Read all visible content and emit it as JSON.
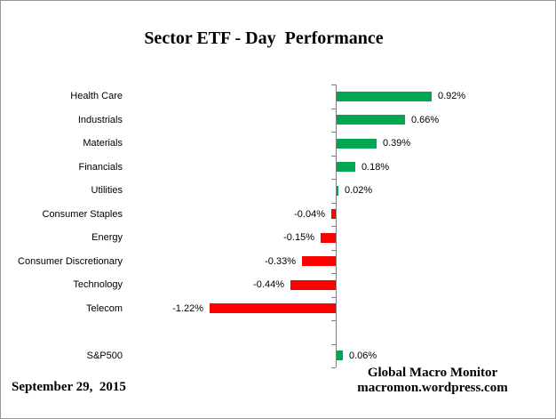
{
  "title": "Sector ETF - Day  Performance",
  "footer": {
    "date": "September 29,  2015",
    "brand": "Global Macro Monitor",
    "url": "macromon.wordpress.com"
  },
  "chart_data": {
    "type": "bar",
    "orientation": "horizontal",
    "title": "Sector ETF - Day  Performance",
    "categories": [
      "Health Care",
      "Industrials",
      "Materials",
      "Financials",
      "Utilities",
      "Consumer Staples",
      "Energy",
      "Consumer Discretionary",
      "Technology",
      "Telecom",
      "",
      "S&P500"
    ],
    "values": [
      0.92,
      0.66,
      0.39,
      0.18,
      0.02,
      -0.04,
      -0.15,
      -0.33,
      -0.44,
      -1.22,
      null,
      0.06
    ],
    "data_labels": [
      "0.92%",
      "0.66%",
      "0.39%",
      "0.18%",
      "0.02%",
      "-0.04%",
      "-0.15%",
      "-0.33%",
      "-0.44%",
      "-1.22%",
      "",
      "0.06%"
    ],
    "positive_color": "#00A651",
    "negative_color": "#FF0000",
    "axis_color": "#808080",
    "xlabel": "",
    "ylabel": "",
    "grid": false,
    "legend": false,
    "value_unit": "percent"
  }
}
